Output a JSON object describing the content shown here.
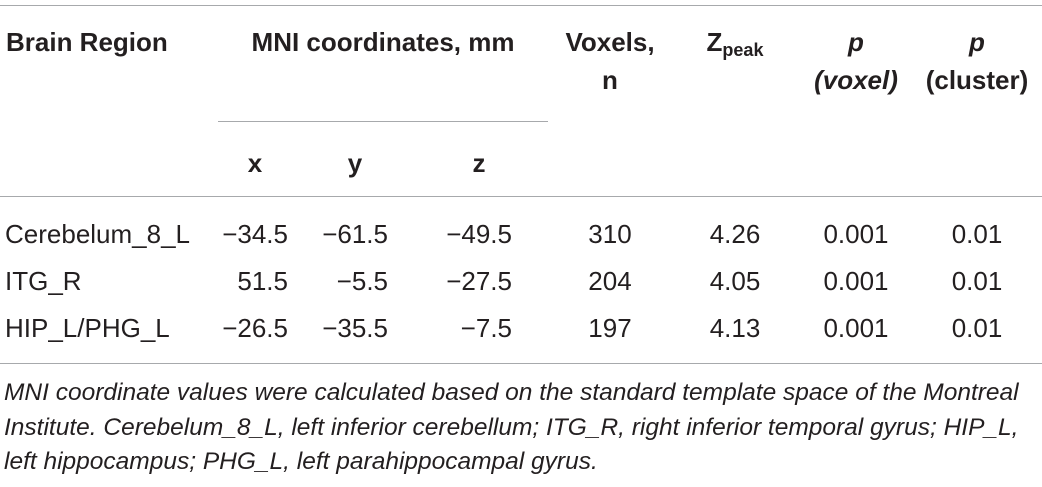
{
  "table": {
    "headers": {
      "brain_region": "Brain Region",
      "mni": "MNI coordinates, mm",
      "voxels_line1": "Voxels,",
      "voxels_line2": "n",
      "zpeak_main": "Z",
      "zpeak_sub": "peak",
      "p_voxel_line1": "p",
      "p_voxel_line2": "(voxel)",
      "p_cluster_line1": "p",
      "p_cluster_line2": "(cluster)",
      "x": "x",
      "y": "y",
      "z": "z"
    },
    "rows": [
      {
        "region": "Cerebelum_8_L",
        "x": "−34.5",
        "y": "−61.5",
        "z": "−49.5",
        "voxels": "310",
        "zpeak": "4.26",
        "p_voxel": "0.001",
        "p_cluster": "0.01"
      },
      {
        "region": "ITG_R",
        "x": "51.5",
        "y": "−5.5",
        "z": "−27.5",
        "voxels": "204",
        "zpeak": "4.05",
        "p_voxel": "0.001",
        "p_cluster": "0.01"
      },
      {
        "region": "HIP_L/PHG_L",
        "x": "−26.5",
        "y": "−35.5",
        "z": "−7.5",
        "voxels": "197",
        "zpeak": "4.13",
        "p_voxel": "0.001",
        "p_cluster": "0.01"
      }
    ],
    "footnote": "MNI coordinate values were calculated based on the standard template space of the Montreal Institute. Cerebelum_8_L, left inferior cerebellum; ITG_R, right inferior temporal gyrus; HIP_L, left hippocampus; PHG_L, left parahippocampal gyrus."
  }
}
